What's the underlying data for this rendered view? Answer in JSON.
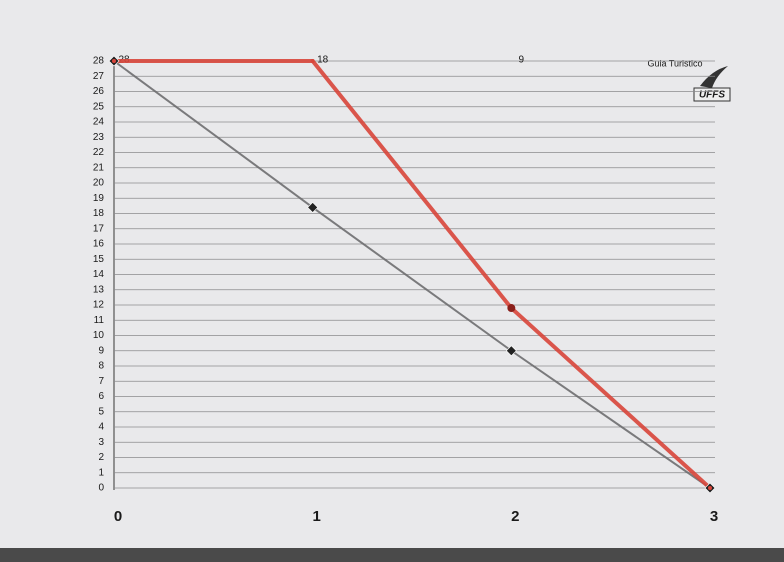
{
  "chart_data": {
    "type": "line",
    "x": [
      0,
      1,
      2,
      3
    ],
    "xlim": [
      0,
      3
    ],
    "xticks": [
      0,
      1,
      2,
      3
    ],
    "ylim": [
      0,
      28
    ],
    "yticks": [
      0,
      1,
      2,
      3,
      4,
      5,
      6,
      7,
      8,
      9,
      10,
      11,
      12,
      13,
      14,
      15,
      16,
      17,
      18,
      19,
      20,
      21,
      22,
      23,
      24,
      25,
      26,
      27,
      28
    ],
    "grid": true,
    "series": [
      {
        "color": "#6e6e70",
        "marker": "diamond",
        "values": [
          28,
          18.4,
          9,
          0
        ]
      },
      {
        "color": "#d8453a",
        "marker": "circle",
        "values": [
          28,
          28,
          11.8,
          0
        ]
      }
    ],
    "annotations": [
      {
        "text": "28",
        "x": 0
      },
      {
        "text": "18",
        "x": 1
      },
      {
        "text": "9",
        "x": 2
      }
    ],
    "logo": {
      "caption": "Guia Turistico",
      "text": "UFFS"
    }
  }
}
